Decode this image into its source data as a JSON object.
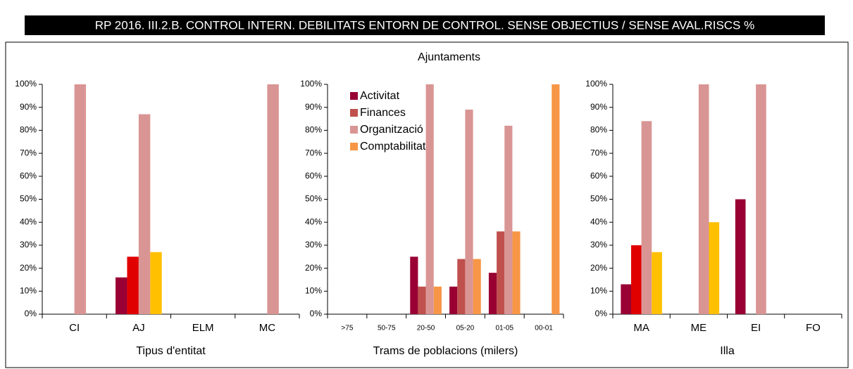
{
  "title": "RP 2016. III.2.B. CONTROL INTERN. DEBILITATS ENTORN DE CONTROL. SENSE OBJECTIUS / SENSE AVAL.RISCS %",
  "chart_data": [
    {
      "type": "bar",
      "xlabel": "Tipus d'entitat",
      "categories": [
        "CI",
        "AJ",
        "ELM",
        "MC"
      ],
      "series": [
        {
          "color": "#990033",
          "values": [
            null,
            16,
            null,
            null
          ]
        },
        {
          "color": "#e00000",
          "values": [
            null,
            25,
            null,
            null
          ]
        },
        {
          "color": "#d99594",
          "values": [
            100,
            87,
            null,
            100
          ]
        },
        {
          "color": "#ffc000",
          "values": [
            null,
            27,
            null,
            null
          ]
        }
      ],
      "ylim": [
        0,
        100
      ],
      "yticks": [
        {
          "value": 0,
          "label": "0%"
        },
        {
          "value": 10,
          "label": "10%"
        },
        {
          "value": 20,
          "label": "20%"
        },
        {
          "value": 30,
          "label": "30%"
        },
        {
          "value": 40,
          "label": "40%"
        },
        {
          "value": 50,
          "label": "50%"
        },
        {
          "value": 60,
          "label": "60%"
        },
        {
          "value": 70,
          "label": "70%"
        },
        {
          "value": 80,
          "label": "80%"
        },
        {
          "value": 90,
          "label": "90%"
        },
        {
          "value": 100,
          "label": "100%"
        }
      ]
    },
    {
      "type": "bar",
      "title": "Ajuntaments",
      "xlabel": "Trams de poblacions (milers)",
      "categories": [
        ">75",
        "50-75",
        "20-50",
        "05-20",
        "01-05",
        "00-01"
      ],
      "series": [
        {
          "name": "Activitat",
          "color": "#990033",
          "values": [
            null,
            null,
            25,
            12,
            18,
            null
          ]
        },
        {
          "name": "Finances",
          "color": "#c0504d",
          "values": [
            null,
            null,
            12,
            24,
            36,
            null
          ]
        },
        {
          "name": "Organització",
          "color": "#d99594",
          "values": [
            null,
            null,
            100,
            89,
            82,
            null
          ]
        },
        {
          "name": "Comptabilitat",
          "color": "#f79646",
          "values": [
            null,
            null,
            12,
            24,
            36,
            100
          ]
        }
      ],
      "legend": "upper left",
      "ylim": [
        0,
        100
      ],
      "yticks": [
        {
          "value": 0,
          "label": "0%"
        },
        {
          "value": 10,
          "label": "10%"
        },
        {
          "value": 20,
          "label": "20%"
        },
        {
          "value": 30,
          "label": "30%"
        },
        {
          "value": 40,
          "label": "40%"
        },
        {
          "value": 50,
          "label": "50%"
        },
        {
          "value": 60,
          "label": "60%"
        },
        {
          "value": 70,
          "label": "70%"
        },
        {
          "value": 80,
          "label": "80%"
        },
        {
          "value": 90,
          "label": "90%"
        },
        {
          "value": 100,
          "label": "100%"
        }
      ]
    },
    {
      "type": "bar",
      "xlabel": "Illa",
      "categories": [
        "MA",
        "ME",
        "EI",
        "FO"
      ],
      "series": [
        {
          "color": "#990033",
          "values": [
            13,
            null,
            50,
            null
          ]
        },
        {
          "color": "#e00000",
          "values": [
            30,
            null,
            null,
            null
          ]
        },
        {
          "color": "#d99594",
          "values": [
            84,
            100,
            100,
            null
          ]
        },
        {
          "color": "#ffc000",
          "values": [
            27,
            40,
            null,
            null
          ]
        }
      ],
      "ylim": [
        0,
        100
      ],
      "yticks": [
        {
          "value": 0,
          "label": "0%"
        },
        {
          "value": 10,
          "label": "10%"
        },
        {
          "value": 20,
          "label": "20%"
        },
        {
          "value": 30,
          "label": "30%"
        },
        {
          "value": 40,
          "label": "40%"
        },
        {
          "value": 50,
          "label": "50%"
        },
        {
          "value": 60,
          "label": "60%"
        },
        {
          "value": 70,
          "label": "70%"
        },
        {
          "value": 80,
          "label": "80%"
        },
        {
          "value": 90,
          "label": "90%"
        },
        {
          "value": 100,
          "label": "100%"
        }
      ]
    }
  ]
}
